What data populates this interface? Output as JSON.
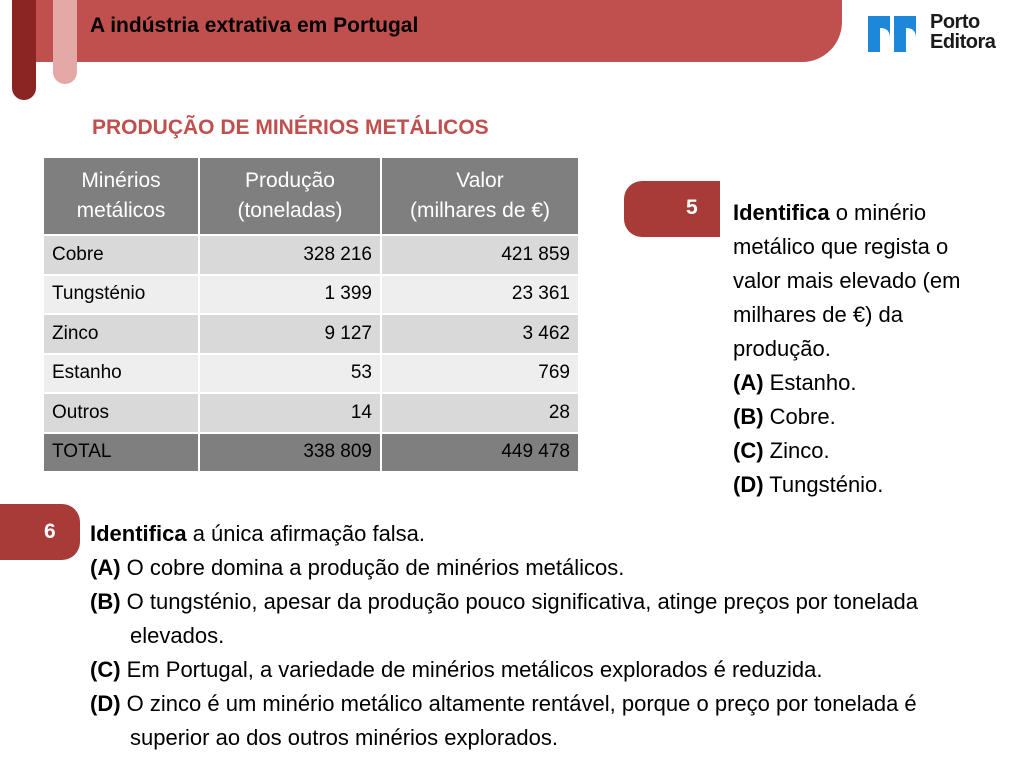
{
  "header": {
    "title": "A indústria extrativa em Portugal",
    "logo_line1": "Porto",
    "logo_line2": "Editora"
  },
  "section_title": "PRODUÇÃO DE MINÉRIOS METÁLICOS",
  "table": {
    "headers": [
      [
        "Minérios",
        "metálicos"
      ],
      [
        "Produção",
        "(toneladas)"
      ],
      [
        "Valor",
        "(milhares de €)"
      ]
    ],
    "rows": [
      [
        "Cobre",
        "328 216",
        "421 859"
      ],
      [
        "Tungsténio",
        "1 399",
        "23 361"
      ],
      [
        "Zinco",
        "9 127",
        "3 462"
      ],
      [
        "Estanho",
        "53",
        "769"
      ],
      [
        "Outros",
        "14",
        "28"
      ],
      [
        "TOTAL",
        "338 809",
        "449 478"
      ]
    ]
  },
  "question5": {
    "number": "5",
    "verb": "Identifica",
    "text": " o minério metálico que regista o valor mais elevado (em milhares de €) da produção.",
    "options": [
      {
        "letter": "(A)",
        "text": " Estanho."
      },
      {
        "letter": "(B)",
        "text": " Cobre."
      },
      {
        "letter": "(C)",
        "text": " Zinco."
      },
      {
        "letter": "(D)",
        "text": " Tungsténio."
      }
    ]
  },
  "question6": {
    "number": "6",
    "verb": "Identifica",
    "text": " a única afirmação falsa.",
    "options": [
      {
        "letter": "(A)",
        "text": " O cobre domina a produção de minérios metálicos."
      },
      {
        "letter": "(B)",
        "text": " O tungsténio, apesar da produção pouco significativa, atinge preços por tonelada elevados."
      },
      {
        "letter": "(C)",
        "text": " Em Portugal, a variedade de minérios metálicos explorados é reduzida."
      },
      {
        "letter": "(D)",
        "text": " O zinco é um minério metálico altamente rentável, porque o preço por tonelada é superior ao dos outros minérios explorados."
      }
    ]
  },
  "colors": {
    "accent": "#c0504d",
    "badge": "#a83a37",
    "logo_blue": "#1e88d8"
  }
}
